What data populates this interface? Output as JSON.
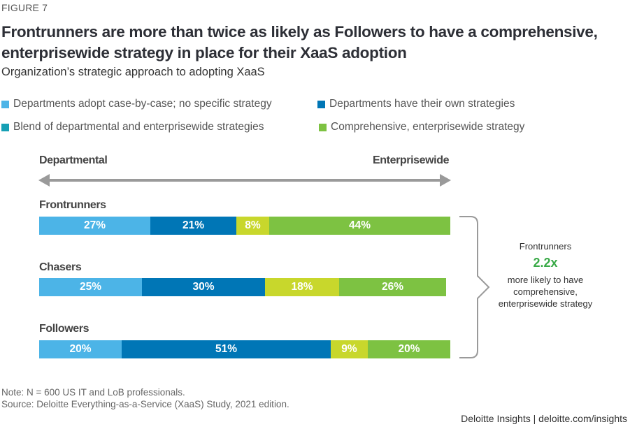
{
  "figure_label": "FIGURE 7",
  "title": "Frontrunners are more than twice as likely as Followers to have a comprehensive, enterprisewide strategy in place for their XaaS adoption",
  "subtitle": "Organization’s strategic approach to adopting XaaS",
  "legend": [
    {
      "label": "Departments adopt case-by-case; no specific strategy",
      "color": "#4cb4e7"
    },
    {
      "label": "Departments have their own strategies",
      "color": "#0076b6"
    },
    {
      "label": "Blend of departmental and enterprisewide strategies",
      "color": "#16a0b5"
    },
    {
      "label": "Comprehensive, enterprisewide strategy",
      "color": "#7dc242"
    }
  ],
  "axis": {
    "left": "Departmental",
    "right": "Enterprisewide"
  },
  "callout": {
    "line1": "Frontrunners",
    "value": "2.2x",
    "line2": "more likely to have comprehensive, enterprisewide strategy",
    "value_color": "#3aaa48"
  },
  "note": "Note: N = 600 US IT and LoB professionals.",
  "source": "Source: Deloitte Everything-as-a-Service (XaaS) Study, 2021 edition.",
  "credit": "Deloitte Insights | deloitte.com/insights",
  "chart_data": {
    "type": "bar",
    "orientation": "horizontal",
    "stacked": true,
    "title": "Frontrunners are more than twice as likely as Followers to have a comprehensive, enterprisewide strategy in place for their XaaS adoption",
    "subtitle": "Organization’s strategic approach to adopting XaaS",
    "categories": [
      "Frontrunners",
      "Chasers",
      "Followers"
    ],
    "series": [
      {
        "name": "Departments adopt case-by-case; no specific strategy",
        "color": "#4cb4e7",
        "values": [
          27,
          25,
          20
        ]
      },
      {
        "name": "Departments have their own strategies",
        "color": "#0076b6",
        "values": [
          21,
          30,
          51
        ]
      },
      {
        "name": "Blend of departmental and enterprisewide strategies",
        "color": "#c8d72c",
        "values": [
          8,
          18,
          9
        ]
      },
      {
        "name": "Comprehensive, enterprisewide strategy",
        "color": "#7dc242",
        "values": [
          44,
          26,
          20
        ]
      }
    ],
    "value_format": "{v}%",
    "xlim": [
      0,
      100
    ],
    "xlabel_left": "Departmental",
    "xlabel_right": "Enterprisewide",
    "grid": false,
    "legend_position": "top"
  }
}
